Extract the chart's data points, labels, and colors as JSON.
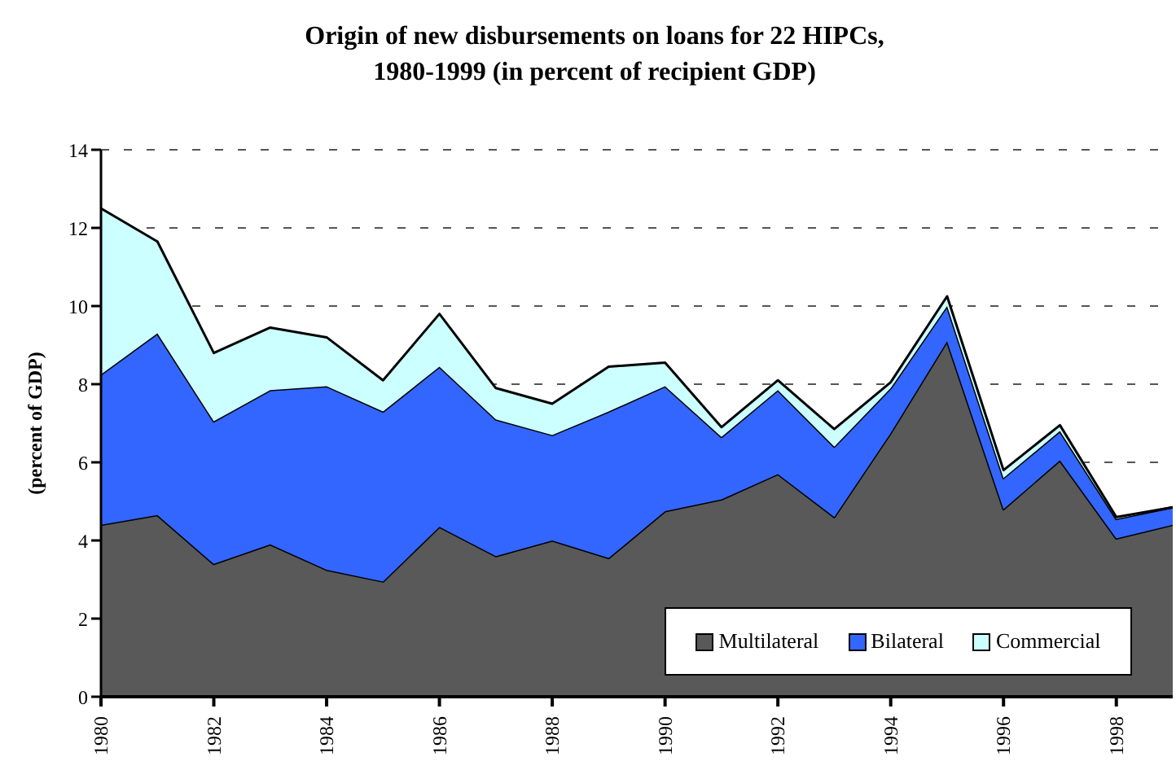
{
  "chart_data": {
    "type": "area",
    "title": "Origin of new disbursements on loans for 22 HIPCs,\n1980-1999 (in percent of recipient GDP)",
    "ylabel": "(percent of GDP)",
    "stacked": true,
    "x": [
      1980,
      1981,
      1982,
      1983,
      1984,
      1985,
      1986,
      1987,
      1988,
      1989,
      1990,
      1991,
      1992,
      1993,
      1994,
      1995,
      1996,
      1997,
      1998,
      1999
    ],
    "series": [
      {
        "name": "Multilateral",
        "color": "#595959",
        "values": [
          4.4,
          4.65,
          3.4,
          3.9,
          3.25,
          2.95,
          4.35,
          3.6,
          4.0,
          3.55,
          4.75,
          5.05,
          5.7,
          4.6,
          6.75,
          9.1,
          4.8,
          6.05,
          4.05,
          4.4
        ]
      },
      {
        "name": "Bilateral",
        "color": "#3366ff",
        "values": [
          3.85,
          4.65,
          3.65,
          3.95,
          4.7,
          4.35,
          4.1,
          3.5,
          2.7,
          3.75,
          3.2,
          1.6,
          2.15,
          1.8,
          1.15,
          0.9,
          0.8,
          0.75,
          0.5,
          0.45
        ]
      },
      {
        "name": "Commercial",
        "color": "#ccffff",
        "values": [
          4.25,
          2.35,
          1.75,
          1.6,
          1.25,
          0.8,
          1.35,
          0.8,
          0.8,
          1.15,
          0.6,
          0.25,
          0.25,
          0.45,
          0.15,
          0.25,
          0.2,
          0.15,
          0.05,
          0
        ]
      }
    ],
    "xlim": [
      1980,
      1999
    ],
    "xticks": [
      1980,
      1982,
      1984,
      1986,
      1988,
      1990,
      1992,
      1994,
      1996,
      1998
    ],
    "ylim": [
      0,
      14
    ],
    "yticks": [
      0,
      2,
      4,
      6,
      8,
      10,
      12,
      14
    ],
    "grid": "y",
    "legend": "bottom right"
  }
}
